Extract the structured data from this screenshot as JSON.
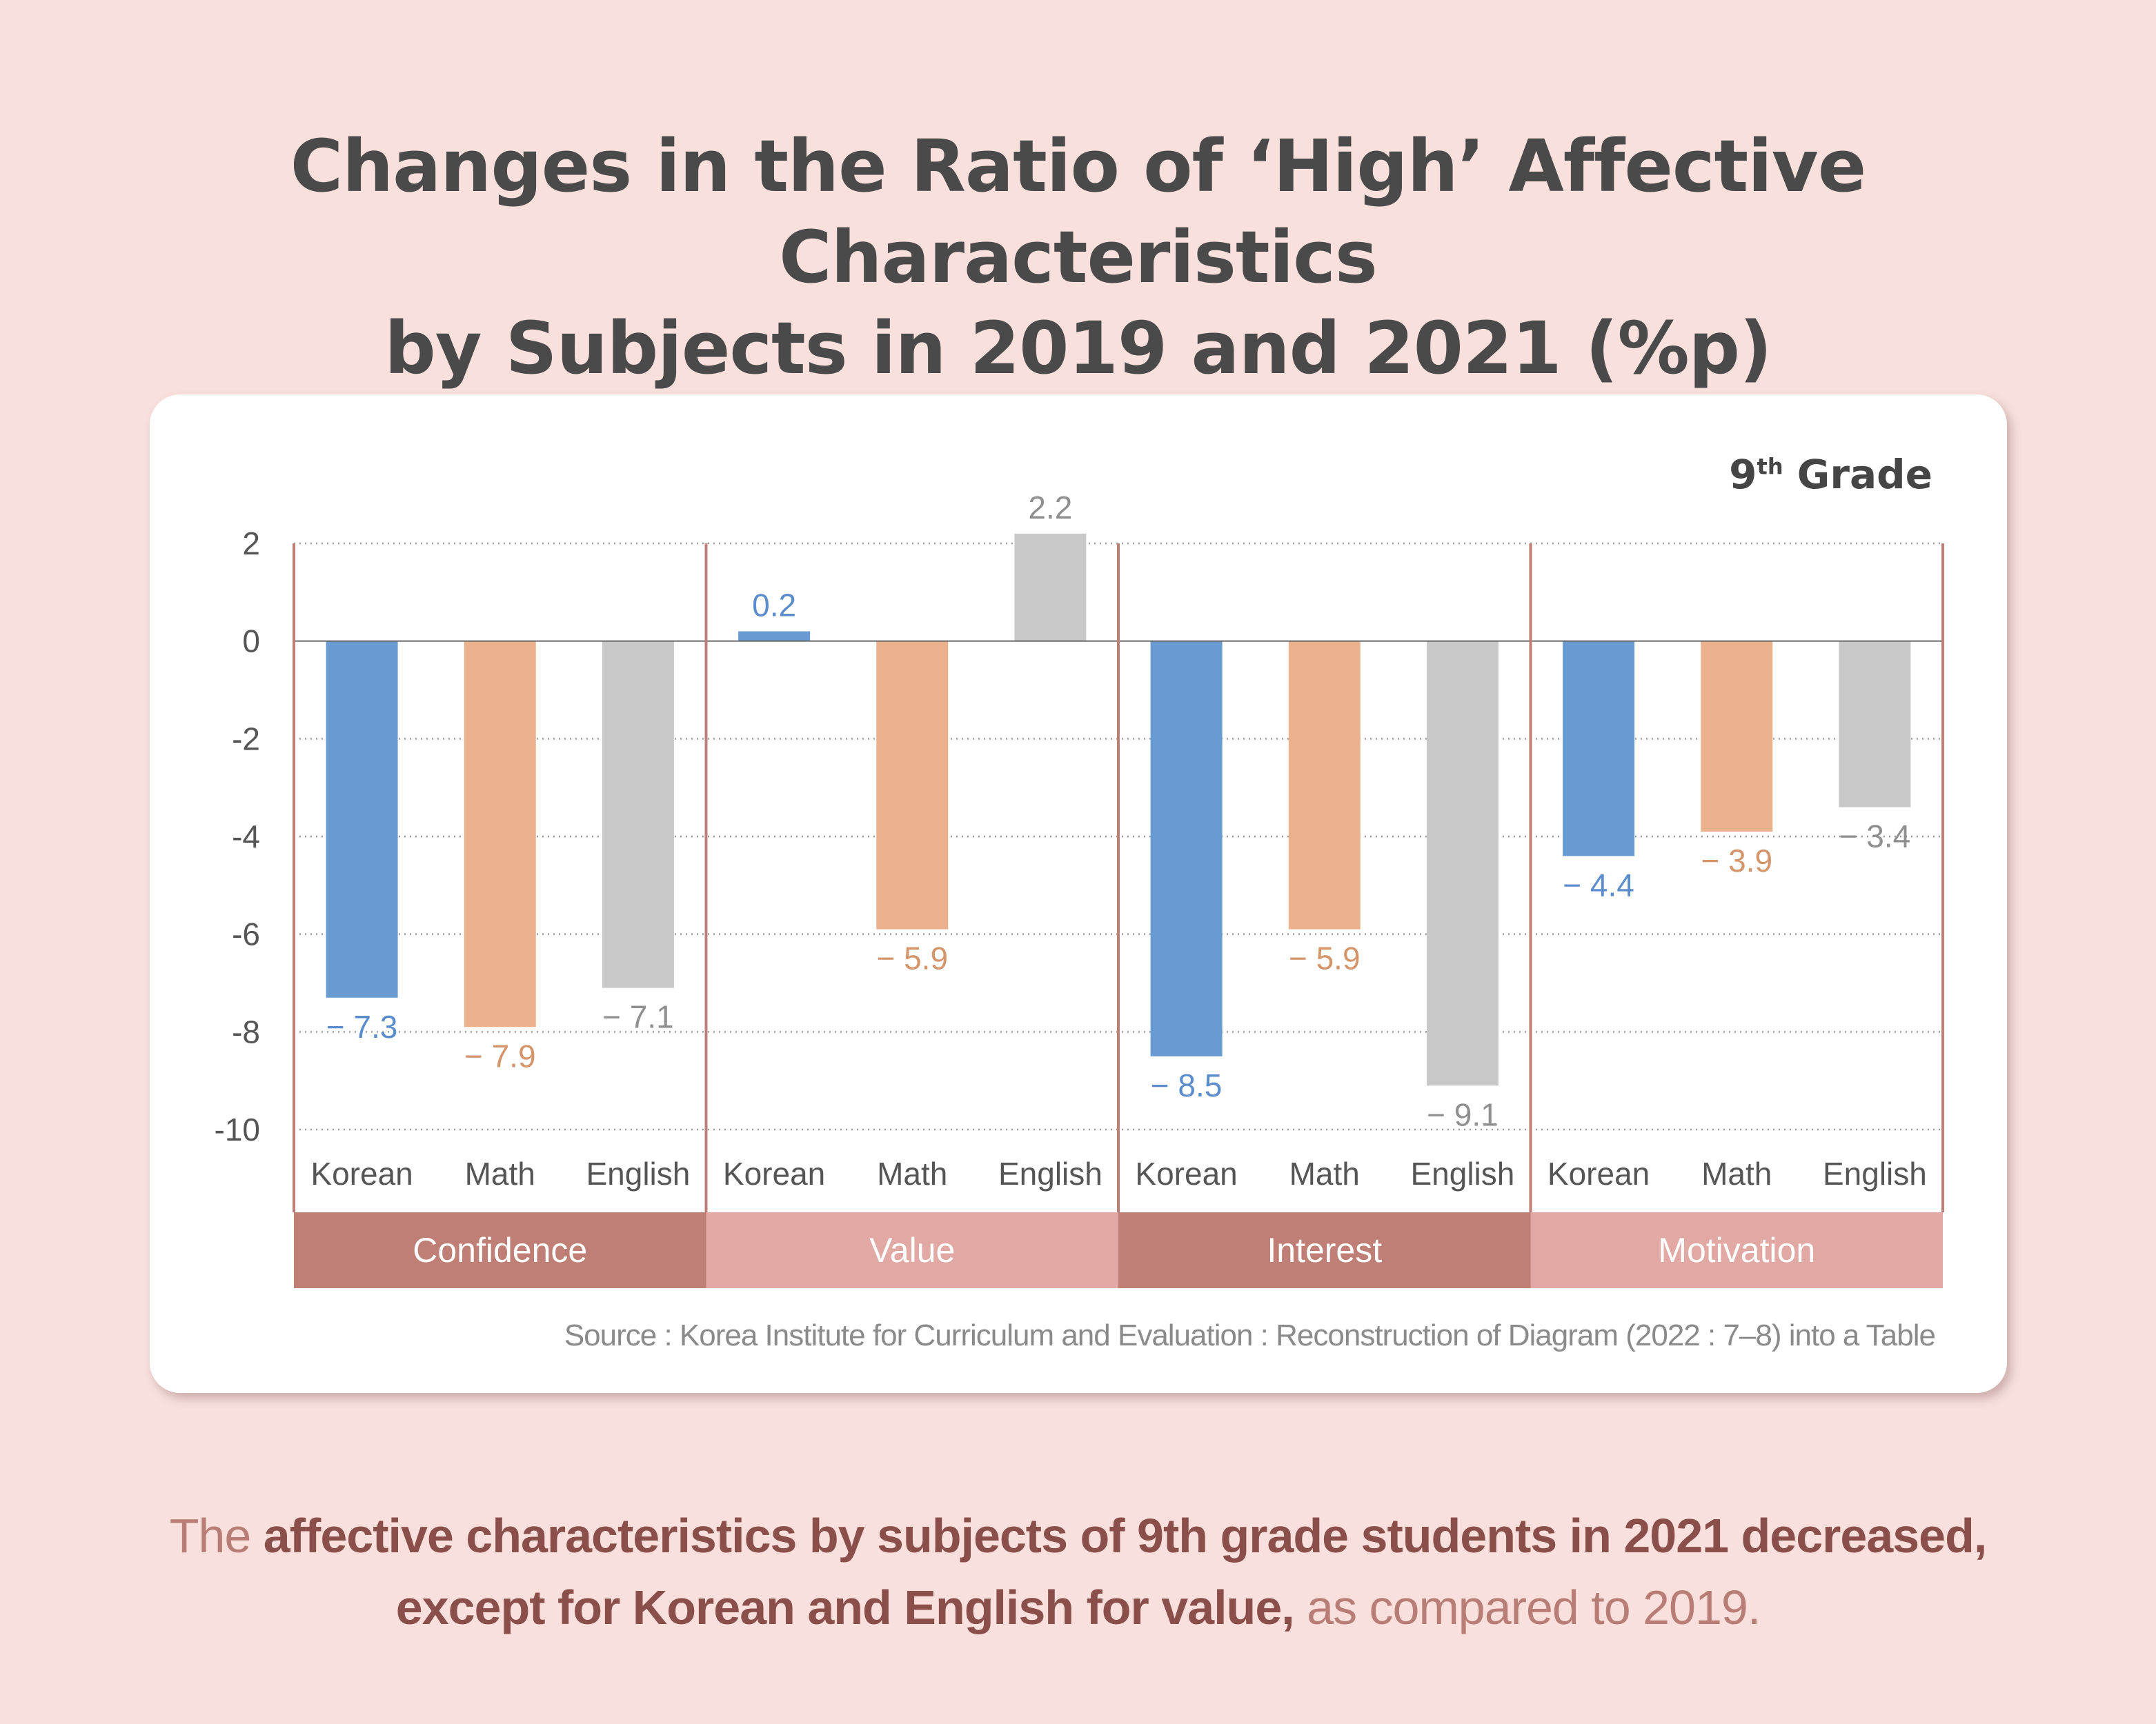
{
  "title": {
    "line1": "Changes in the Ratio of ‘High’ Affective Characteristics",
    "line2": "by Subjects in 2019 and 2021 (%p)"
  },
  "grade_label": {
    "number": "9",
    "suffix": "th",
    "text": "Grade"
  },
  "source": "Source : Korea Institute for Curriculum and Evaluation : Reconstruction of Diagram (2022 : 7–8) into a Table",
  "caption": {
    "line1_light": "The",
    "line1_bold": "affective characteristics by subjects of 9th grade students in 2021 decreased,",
    "line2_bold": "except for Korean and English for value,",
    "line2_light": "as compared to 2019."
  },
  "colors": {
    "korean": "#6a9ad2",
    "math": "#ebb18c",
    "english": "#c8c8c8",
    "korean_label": "#5b8ccb",
    "math_label": "#d4956b",
    "english_label": "#8f8f8f",
    "group_dark": "#c07f76",
    "group_light": "#e2a8a3",
    "frame": "#c07f76"
  },
  "chart_data": {
    "type": "bar",
    "title": "Changes in the Ratio of ‘High’ Affective Characteristics by Subjects in 2019 and 2021 (%p)",
    "subtitle": "9th Grade",
    "xlabel": "",
    "ylabel": "",
    "ylim": [
      -10,
      2
    ],
    "yticks": [
      2,
      0,
      -2,
      -4,
      -6,
      -8,
      -10
    ],
    "grid": true,
    "groups": [
      "Confidence",
      "Value",
      "Interest",
      "Motivation"
    ],
    "categories": [
      "Korean",
      "Math",
      "English"
    ],
    "series": [
      {
        "name": "Korean",
        "values": [
          -7.3,
          0.2,
          -8.5,
          -4.4
        ],
        "labels": [
          "− 7.3",
          "0.2",
          "− 8.5",
          "− 4.4"
        ]
      },
      {
        "name": "Math",
        "values": [
          -7.9,
          -5.9,
          -5.9,
          -3.9
        ],
        "labels": [
          "− 7.9",
          "− 5.9",
          "− 5.9",
          "− 3.9"
        ]
      },
      {
        "name": "English",
        "values": [
          -7.1,
          2.2,
          -9.1,
          -3.4
        ],
        "labels": [
          "− 7.1",
          "2.2",
          "− 9.1",
          "− 3.4"
        ]
      }
    ]
  }
}
